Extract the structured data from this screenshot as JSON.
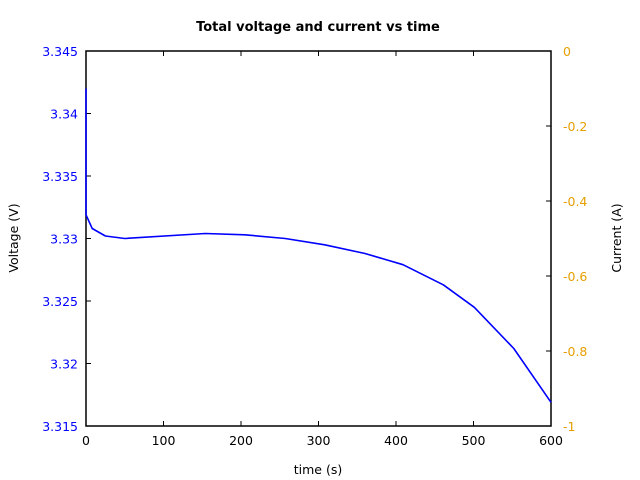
{
  "chart_data": {
    "type": "line",
    "title": "Total voltage and current vs time",
    "xlabel": "time (s)",
    "ylabel": "Voltage (V)",
    "y2label": "Current (A)",
    "xlim": [
      0,
      600
    ],
    "ylim": [
      3.315,
      3.345
    ],
    "y2lim": [
      -1,
      0
    ],
    "xticks": [
      "0",
      "100",
      "200",
      "300",
      "400",
      "500",
      "600"
    ],
    "yticks": [
      "3.315",
      "3.32",
      "3.325",
      "3.33",
      "3.335",
      "3.34",
      "3.345"
    ],
    "y2ticks": [
      "-1",
      "-0.8",
      "-0.6",
      "-0.4",
      "-0.2",
      "0"
    ],
    "grid": false,
    "colors": {
      "voltage": "#0000ff",
      "y_ticks": "#0000ff",
      "y2_ticks": "#e69f00",
      "axes": "#000000"
    },
    "series": [
      {
        "name": "Voltage",
        "axis": "left",
        "x": [
          0,
          0,
          8,
          25,
          50,
          154,
          205,
          257,
          308,
          360,
          409,
          461,
          501,
          552,
          600
        ],
        "values": [
          3.342,
          3.3319,
          3.3308,
          3.3302,
          3.33,
          3.3304,
          3.3303,
          3.33,
          3.3295,
          3.3288,
          3.3279,
          3.3263,
          3.3245,
          3.3212,
          3.3169
        ]
      }
    ]
  }
}
